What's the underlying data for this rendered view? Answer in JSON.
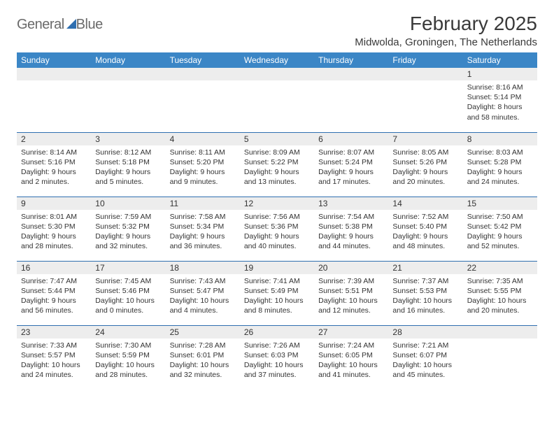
{
  "logo": {
    "text1": "General",
    "text2": "Blue"
  },
  "title": "February 2025",
  "location": "Midwolda, Groningen, The Netherlands",
  "colors": {
    "header_bg": "#3b86c6",
    "border": "#2f6fb0",
    "daynum_bg": "#ededed",
    "text": "#333333"
  },
  "weekdays": [
    "Sunday",
    "Monday",
    "Tuesday",
    "Wednesday",
    "Thursday",
    "Friday",
    "Saturday"
  ],
  "weeks": [
    [
      {
        "n": "",
        "sr": "",
        "ss": "",
        "dl": ""
      },
      {
        "n": "",
        "sr": "",
        "ss": "",
        "dl": ""
      },
      {
        "n": "",
        "sr": "",
        "ss": "",
        "dl": ""
      },
      {
        "n": "",
        "sr": "",
        "ss": "",
        "dl": ""
      },
      {
        "n": "",
        "sr": "",
        "ss": "",
        "dl": ""
      },
      {
        "n": "",
        "sr": "",
        "ss": "",
        "dl": ""
      },
      {
        "n": "1",
        "sr": "Sunrise: 8:16 AM",
        "ss": "Sunset: 5:14 PM",
        "dl": "Daylight: 8 hours and 58 minutes."
      }
    ],
    [
      {
        "n": "2",
        "sr": "Sunrise: 8:14 AM",
        "ss": "Sunset: 5:16 PM",
        "dl": "Daylight: 9 hours and 2 minutes."
      },
      {
        "n": "3",
        "sr": "Sunrise: 8:12 AM",
        "ss": "Sunset: 5:18 PM",
        "dl": "Daylight: 9 hours and 5 minutes."
      },
      {
        "n": "4",
        "sr": "Sunrise: 8:11 AM",
        "ss": "Sunset: 5:20 PM",
        "dl": "Daylight: 9 hours and 9 minutes."
      },
      {
        "n": "5",
        "sr": "Sunrise: 8:09 AM",
        "ss": "Sunset: 5:22 PM",
        "dl": "Daylight: 9 hours and 13 minutes."
      },
      {
        "n": "6",
        "sr": "Sunrise: 8:07 AM",
        "ss": "Sunset: 5:24 PM",
        "dl": "Daylight: 9 hours and 17 minutes."
      },
      {
        "n": "7",
        "sr": "Sunrise: 8:05 AM",
        "ss": "Sunset: 5:26 PM",
        "dl": "Daylight: 9 hours and 20 minutes."
      },
      {
        "n": "8",
        "sr": "Sunrise: 8:03 AM",
        "ss": "Sunset: 5:28 PM",
        "dl": "Daylight: 9 hours and 24 minutes."
      }
    ],
    [
      {
        "n": "9",
        "sr": "Sunrise: 8:01 AM",
        "ss": "Sunset: 5:30 PM",
        "dl": "Daylight: 9 hours and 28 minutes."
      },
      {
        "n": "10",
        "sr": "Sunrise: 7:59 AM",
        "ss": "Sunset: 5:32 PM",
        "dl": "Daylight: 9 hours and 32 minutes."
      },
      {
        "n": "11",
        "sr": "Sunrise: 7:58 AM",
        "ss": "Sunset: 5:34 PM",
        "dl": "Daylight: 9 hours and 36 minutes."
      },
      {
        "n": "12",
        "sr": "Sunrise: 7:56 AM",
        "ss": "Sunset: 5:36 PM",
        "dl": "Daylight: 9 hours and 40 minutes."
      },
      {
        "n": "13",
        "sr": "Sunrise: 7:54 AM",
        "ss": "Sunset: 5:38 PM",
        "dl": "Daylight: 9 hours and 44 minutes."
      },
      {
        "n": "14",
        "sr": "Sunrise: 7:52 AM",
        "ss": "Sunset: 5:40 PM",
        "dl": "Daylight: 9 hours and 48 minutes."
      },
      {
        "n": "15",
        "sr": "Sunrise: 7:50 AM",
        "ss": "Sunset: 5:42 PM",
        "dl": "Daylight: 9 hours and 52 minutes."
      }
    ],
    [
      {
        "n": "16",
        "sr": "Sunrise: 7:47 AM",
        "ss": "Sunset: 5:44 PM",
        "dl": "Daylight: 9 hours and 56 minutes."
      },
      {
        "n": "17",
        "sr": "Sunrise: 7:45 AM",
        "ss": "Sunset: 5:46 PM",
        "dl": "Daylight: 10 hours and 0 minutes."
      },
      {
        "n": "18",
        "sr": "Sunrise: 7:43 AM",
        "ss": "Sunset: 5:47 PM",
        "dl": "Daylight: 10 hours and 4 minutes."
      },
      {
        "n": "19",
        "sr": "Sunrise: 7:41 AM",
        "ss": "Sunset: 5:49 PM",
        "dl": "Daylight: 10 hours and 8 minutes."
      },
      {
        "n": "20",
        "sr": "Sunrise: 7:39 AM",
        "ss": "Sunset: 5:51 PM",
        "dl": "Daylight: 10 hours and 12 minutes."
      },
      {
        "n": "21",
        "sr": "Sunrise: 7:37 AM",
        "ss": "Sunset: 5:53 PM",
        "dl": "Daylight: 10 hours and 16 minutes."
      },
      {
        "n": "22",
        "sr": "Sunrise: 7:35 AM",
        "ss": "Sunset: 5:55 PM",
        "dl": "Daylight: 10 hours and 20 minutes."
      }
    ],
    [
      {
        "n": "23",
        "sr": "Sunrise: 7:33 AM",
        "ss": "Sunset: 5:57 PM",
        "dl": "Daylight: 10 hours and 24 minutes."
      },
      {
        "n": "24",
        "sr": "Sunrise: 7:30 AM",
        "ss": "Sunset: 5:59 PM",
        "dl": "Daylight: 10 hours and 28 minutes."
      },
      {
        "n": "25",
        "sr": "Sunrise: 7:28 AM",
        "ss": "Sunset: 6:01 PM",
        "dl": "Daylight: 10 hours and 32 minutes."
      },
      {
        "n": "26",
        "sr": "Sunrise: 7:26 AM",
        "ss": "Sunset: 6:03 PM",
        "dl": "Daylight: 10 hours and 37 minutes."
      },
      {
        "n": "27",
        "sr": "Sunrise: 7:24 AM",
        "ss": "Sunset: 6:05 PM",
        "dl": "Daylight: 10 hours and 41 minutes."
      },
      {
        "n": "28",
        "sr": "Sunrise: 7:21 AM",
        "ss": "Sunset: 6:07 PM",
        "dl": "Daylight: 10 hours and 45 minutes."
      },
      {
        "n": "",
        "sr": "",
        "ss": "",
        "dl": ""
      }
    ]
  ]
}
